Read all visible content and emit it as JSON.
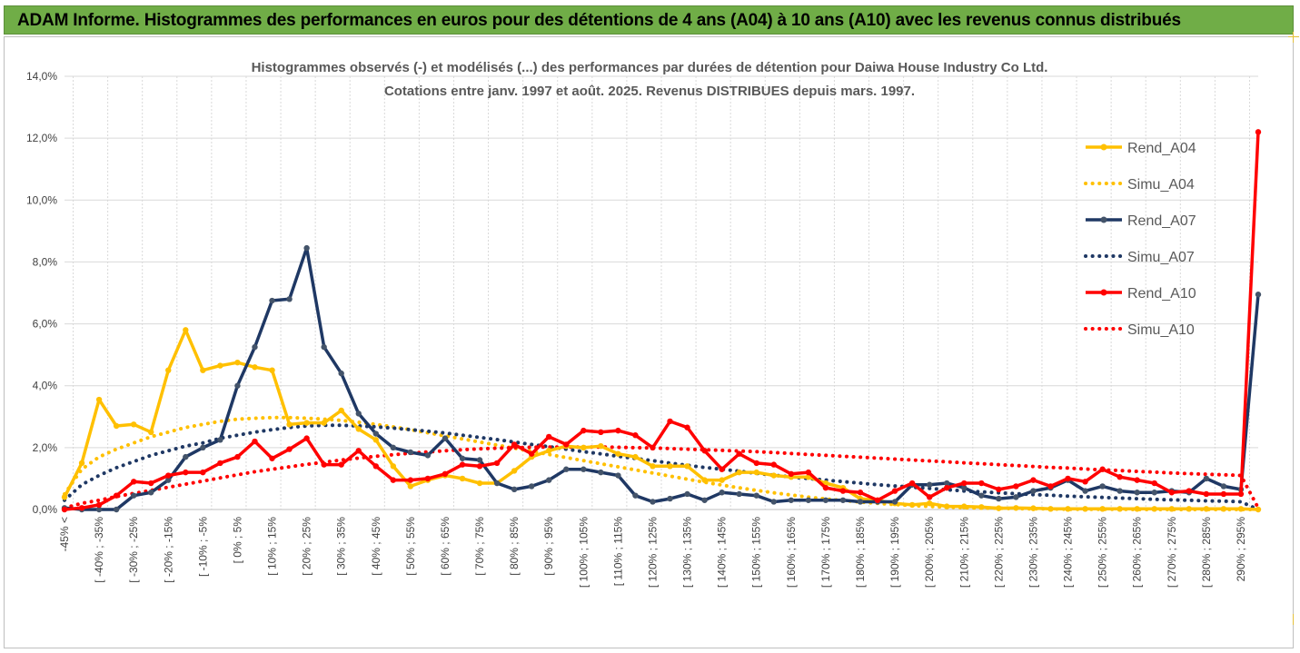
{
  "banner": {
    "title": "ADAM Informe. Histogrammes des performances en euros pour des détentions de 4 ans (A04) à 10 ans (A10) avec les revenus connus distribués"
  },
  "colors": {
    "banner_bg": "#70ad47",
    "A04": "#ffc000",
    "A07": "#1f3864",
    "A10": "#ff0000",
    "grid": "#d9d9d9"
  },
  "chart_data": {
    "type": "line",
    "title": "Histogrammes observés (-) et modélisés (...) des performances par durées de détention pour Daiwa House Industry Co Ltd.",
    "subtitle": "Cotations entre janv. 1997 et août. 2025. Revenus DISTRIBUES depuis mars. 1997.",
    "y_ticks": [
      "0,0%",
      "2,0%",
      "4,0%",
      "6,0%",
      "8,0%",
      "10,0%",
      "12,0%",
      "14,0%"
    ],
    "ylim": [
      0,
      14
    ],
    "x_tick_labels": [
      "-45% <",
      "[ -40% ; -35%",
      "[ -30% ; -25%",
      "[ -20% ; -15%",
      "[ -10% ; -5%",
      "[ 0% ; 5%",
      "[ 10% ; 15%",
      "[ 20% ; 25%",
      "[ 30% ; 35%",
      "[ 40% ; 45%",
      "[ 50% ; 55%",
      "[ 60% ; 65%",
      "[ 70% ; 75%",
      "[ 80% ; 85%",
      "[ 90% ; 95%",
      "[ 100% ; 105%",
      "[ 110% ; 115%",
      "[ 120% ; 125%",
      "[ 130% ; 135%",
      "[ 140% ; 145%",
      "[ 150% ; 155%",
      "[ 160% ; 165%",
      "[ 170% ; 175%",
      "[ 180% ; 185%",
      "[ 190% ; 195%",
      "[ 200% ; 205%",
      "[ 210% ; 215%",
      "[ 220% ; 225%",
      "[ 230% ; 235%",
      "[ 240% ; 245%",
      "[ 250% ; 255%",
      "[ 260% ; 265%",
      "[ 270% ; 275%",
      "[ 280% ; 285%",
      "290% ; 295%"
    ],
    "grid": true,
    "legend_position": "right",
    "series": [
      {
        "name": "Rend_A04",
        "style": "solid",
        "color": "#ffc000",
        "values": [
          0.4,
          1.5,
          3.55,
          2.7,
          2.75,
          2.5,
          4.5,
          5.8,
          4.5,
          4.65,
          4.75,
          4.6,
          4.5,
          2.75,
          2.8,
          2.8,
          3.2,
          2.6,
          2.25,
          1.4,
          0.75,
          0.95,
          1.1,
          1.0,
          0.85,
          0.85,
          1.25,
          1.7,
          1.9,
          2.05,
          2.0,
          2.05,
          1.8,
          1.7,
          1.4,
          1.4,
          1.4,
          0.95,
          0.95,
          1.2,
          1.2,
          1.1,
          1.05,
          1.05,
          0.85,
          0.7,
          0.35,
          0.3,
          0.2,
          0.15,
          0.2,
          0.1,
          0.1,
          0.08,
          0.04,
          0.05,
          0.04,
          0.02,
          0.02,
          0.02,
          0.02,
          0.02,
          0.02,
          0.02,
          0.02,
          0.02,
          0.02,
          0.02,
          0.02,
          0.0
        ]
      },
      {
        "name": "Simu_A04",
        "style": "dotted",
        "color": "#ffc000",
        "values": [
          0.5,
          1.3,
          1.7,
          1.95,
          2.15,
          2.35,
          2.5,
          2.65,
          2.75,
          2.85,
          2.92,
          2.95,
          2.97,
          2.97,
          2.95,
          2.92,
          2.88,
          2.82,
          2.75,
          2.67,
          2.58,
          2.48,
          2.38,
          2.28,
          2.18,
          2.08,
          1.98,
          1.88,
          1.78,
          1.68,
          1.58,
          1.48,
          1.38,
          1.28,
          1.18,
          1.08,
          0.98,
          0.88,
          0.79,
          0.7,
          0.62,
          0.54,
          0.47,
          0.4,
          0.34,
          0.29,
          0.24,
          0.2,
          0.16,
          0.13,
          0.1,
          0.08,
          0.06,
          0.05,
          0.04,
          0.03,
          0.02,
          0.02,
          0.01,
          0.01,
          0.01,
          0.01,
          0.0,
          0.0,
          0.0,
          0.0,
          0.0,
          0.0,
          0.0,
          0.0
        ]
      },
      {
        "name": "Rend_A07",
        "style": "solid",
        "color": "#1f3864",
        "values": [
          0.05,
          0.0,
          0.0,
          0.0,
          0.45,
          0.55,
          0.95,
          1.7,
          2.0,
          2.25,
          4.0,
          5.25,
          6.75,
          6.8,
          8.45,
          5.25,
          4.4,
          3.1,
          2.45,
          2.0,
          1.85,
          1.75,
          2.3,
          1.65,
          1.6,
          0.85,
          0.65,
          0.75,
          0.95,
          1.3,
          1.3,
          1.2,
          1.1,
          0.45,
          0.25,
          0.35,
          0.5,
          0.3,
          0.55,
          0.5,
          0.45,
          0.25,
          0.3,
          0.3,
          0.3,
          0.3,
          0.25,
          0.25,
          0.25,
          0.8,
          0.8,
          0.85,
          0.7,
          0.45,
          0.35,
          0.4,
          0.6,
          0.7,
          0.95,
          0.6,
          0.75,
          0.6,
          0.55,
          0.55,
          0.6,
          0.55,
          1.0,
          0.75,
          0.65,
          6.95
        ]
      },
      {
        "name": "Simu_A07",
        "style": "dotted",
        "color": "#1f3864",
        "values": [
          0.3,
          0.8,
          1.1,
          1.35,
          1.55,
          1.75,
          1.9,
          2.05,
          2.15,
          2.3,
          2.4,
          2.5,
          2.58,
          2.65,
          2.7,
          2.72,
          2.72,
          2.7,
          2.67,
          2.63,
          2.58,
          2.53,
          2.47,
          2.4,
          2.33,
          2.26,
          2.18,
          2.1,
          2.03,
          1.95,
          1.87,
          1.8,
          1.72,
          1.65,
          1.58,
          1.5,
          1.43,
          1.36,
          1.3,
          1.24,
          1.17,
          1.11,
          1.05,
          1.0,
          0.95,
          0.9,
          0.85,
          0.8,
          0.76,
          0.72,
          0.68,
          0.64,
          0.6,
          0.57,
          0.54,
          0.51,
          0.48,
          0.46,
          0.43,
          0.41,
          0.39,
          0.37,
          0.35,
          0.33,
          0.31,
          0.3,
          0.28,
          0.27,
          0.25,
          0.0
        ]
      },
      {
        "name": "Rend_A10",
        "style": "solid",
        "color": "#ff0000",
        "values": [
          0.0,
          0.05,
          0.15,
          0.45,
          0.9,
          0.85,
          1.1,
          1.2,
          1.2,
          1.5,
          1.7,
          2.2,
          1.65,
          1.95,
          2.3,
          1.45,
          1.45,
          1.9,
          1.4,
          0.95,
          0.95,
          1.0,
          1.15,
          1.45,
          1.4,
          1.5,
          2.1,
          1.8,
          2.35,
          2.1,
          2.55,
          2.5,
          2.55,
          2.4,
          2.0,
          2.85,
          2.65,
          1.9,
          1.3,
          1.8,
          1.5,
          1.45,
          1.15,
          1.2,
          0.7,
          0.6,
          0.55,
          0.3,
          0.6,
          0.85,
          0.4,
          0.7,
          0.85,
          0.85,
          0.65,
          0.75,
          0.95,
          0.75,
          1.0,
          0.9,
          1.3,
          1.05,
          0.95,
          0.85,
          0.55,
          0.6,
          0.5,
          0.5,
          0.5,
          12.2
        ]
      },
      {
        "name": "Simu_A10",
        "style": "dotted",
        "color": "#ff0000",
        "values": [
          0.05,
          0.2,
          0.3,
          0.42,
          0.52,
          0.62,
          0.72,
          0.82,
          0.92,
          1.02,
          1.12,
          1.22,
          1.3,
          1.38,
          1.46,
          1.53,
          1.6,
          1.66,
          1.72,
          1.77,
          1.82,
          1.86,
          1.9,
          1.93,
          1.96,
          1.98,
          2.0,
          2.01,
          2.02,
          2.02,
          2.02,
          2.02,
          2.01,
          2.0,
          1.99,
          1.97,
          1.95,
          1.93,
          1.91,
          1.89,
          1.87,
          1.84,
          1.81,
          1.78,
          1.75,
          1.72,
          1.69,
          1.66,
          1.63,
          1.6,
          1.57,
          1.54,
          1.51,
          1.48,
          1.45,
          1.42,
          1.39,
          1.36,
          1.34,
          1.31,
          1.28,
          1.26,
          1.23,
          1.21,
          1.18,
          1.16,
          1.14,
          1.12,
          1.1,
          0.05
        ]
      }
    ]
  }
}
